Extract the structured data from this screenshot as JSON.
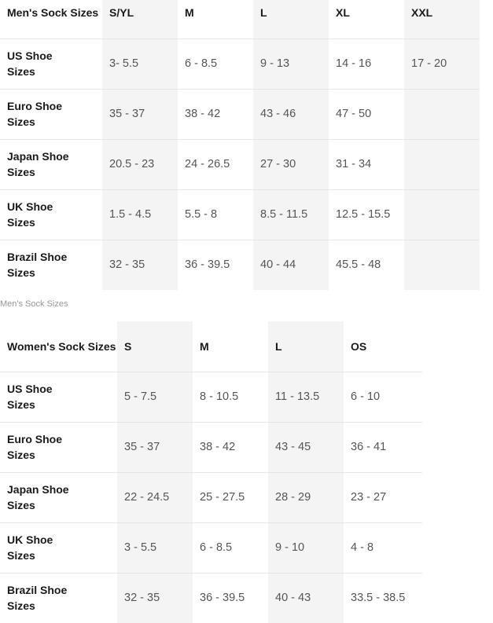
{
  "men": {
    "header": [
      "Men's Sock Sizes",
      "S/YL",
      "M",
      "L",
      "XL",
      "XXL"
    ],
    "rows": [
      {
        "label": "US Shoe Sizes",
        "values": [
          "3- 5.5",
          "6 - 8.5",
          "9 - 13",
          "14 - 16",
          "17 - 20"
        ]
      },
      {
        "label": "Euro Shoe Sizes",
        "values": [
          "35 - 37",
          "38 - 42",
          "43 - 46",
          "47 - 50",
          ""
        ]
      },
      {
        "label": "Japan Shoe Sizes",
        "values": [
          "20.5 - 23",
          "24 - 26.5",
          "27 - 30",
          "31 - 34",
          ""
        ]
      },
      {
        "label": "UK Shoe Sizes",
        "values": [
          "1.5 - 4.5",
          "5.5 - 8",
          "8.5 - 11.5",
          "12.5 - 15.5",
          ""
        ]
      },
      {
        "label": "Brazil Shoe Sizes",
        "values": [
          "32 - 35",
          "36 - 39.5",
          "40 - 44",
          "45.5 - 48",
          ""
        ]
      }
    ]
  },
  "caption": "Men's Sock Sizes",
  "women": {
    "header": [
      "Women's Sock Sizes",
      "S",
      "M",
      "L",
      "OS"
    ],
    "rows": [
      {
        "label": "US Shoe Sizes",
        "values": [
          "5 - 7.5",
          "8 - 10.5",
          "11 - 13.5",
          "6 - 10"
        ]
      },
      {
        "label": "Euro Shoe Sizes",
        "values": [
          "35 - 37",
          "38 - 42",
          "43 - 45",
          "36 - 41"
        ]
      },
      {
        "label": "Japan Shoe Sizes",
        "values": [
          "22 - 24.5",
          "25 - 27.5",
          "28 - 29",
          "23 - 27"
        ]
      },
      {
        "label": "UK Shoe Sizes",
        "values": [
          "3 - 5.5",
          "6 - 8.5",
          "9 - 10",
          "4 - 8"
        ]
      },
      {
        "label": "Brazil Shoe Sizes",
        "values": [
          "32 - 35",
          "36 - 39.5",
          "40 - 43",
          "33.5 - 38.5"
        ]
      }
    ]
  }
}
